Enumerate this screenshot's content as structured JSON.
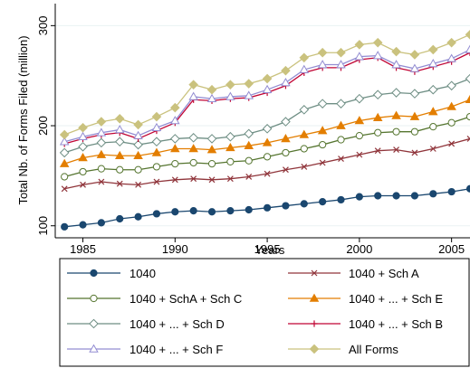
{
  "chart_data": {
    "type": "line",
    "title": "",
    "xlabel": "Years",
    "ylabel": "Total Nb. of Forms Filed (million)",
    "xlim": [
      1983.5,
      2006
    ],
    "ylim": [
      88,
      322
    ],
    "xticks": [
      1985,
      1990,
      1995,
      2000,
      2005
    ],
    "yticks": [
      100,
      200,
      300
    ],
    "grid": "horizontal",
    "legend_position": "bottom",
    "x": [
      1984,
      1985,
      1986,
      1987,
      1988,
      1989,
      1990,
      1991,
      1992,
      1993,
      1994,
      1995,
      1996,
      1997,
      1998,
      1999,
      2000,
      2001,
      2002,
      2003,
      2004,
      2005,
      2006
    ],
    "series": [
      {
        "name": "1040",
        "color": "#1a476f",
        "marker": "circle",
        "values": [
          99,
          101,
          103,
          107,
          109,
          112,
          114,
          115,
          114,
          115,
          116,
          118,
          120,
          122,
          124,
          126,
          129,
          130,
          130,
          130,
          132,
          134,
          137
        ]
      },
      {
        "name": "1040 + Sch A",
        "color": "#90353b",
        "marker": "x",
        "values": [
          137,
          141,
          144,
          142,
          141,
          144,
          146,
          147,
          146,
          147,
          149,
          152,
          156,
          159,
          163,
          167,
          171,
          175,
          176,
          173,
          177,
          182,
          187
        ]
      },
      {
        "name": "1040 + SchA + Sch C",
        "color": "#55752f",
        "marker": "circle-hollow",
        "values": [
          149,
          154,
          157,
          156,
          156,
          159,
          162,
          163,
          162,
          164,
          165,
          169,
          173,
          177,
          181,
          186,
          190,
          193,
          194,
          194,
          199,
          203,
          209
        ]
      },
      {
        "name": "1040 + ... + Sch E",
        "color": "#e37e00",
        "marker": "triangle",
        "values": [
          162,
          168,
          171,
          170,
          170,
          173,
          177,
          177,
          176,
          178,
          180,
          183,
          187,
          191,
          195,
          200,
          205,
          208,
          210,
          209,
          214,
          219,
          226
        ]
      },
      {
        "name": "1040 + ... + Sch D",
        "color": "#6e8e84",
        "marker": "diamond-hollow",
        "values": [
          173,
          179,
          183,
          184,
          181,
          184,
          187,
          188,
          187,
          189,
          192,
          197,
          204,
          216,
          222,
          222,
          227,
          231,
          233,
          232,
          236,
          240,
          247
        ]
      },
      {
        "name": "1040 + ... + Sch B",
        "color": "#c10534",
        "marker": "plus",
        "values": [
          182,
          187,
          191,
          193,
          187,
          195,
          203,
          226,
          225,
          227,
          228,
          233,
          240,
          253,
          258,
          258,
          266,
          268,
          258,
          254,
          259,
          264,
          273
        ]
      },
      {
        "name": "1040 + ... + Sch F",
        "color": "#938dd2",
        "marker": "triangle-hollow",
        "values": [
          184,
          189,
          193,
          196,
          190,
          198,
          205,
          229,
          227,
          229,
          230,
          236,
          243,
          256,
          261,
          261,
          269,
          270,
          261,
          257,
          262,
          267,
          276
        ]
      },
      {
        "name": "All Forms",
        "color": "#cac27e",
        "marker": "diamond",
        "values": [
          191,
          198,
          204,
          207,
          201,
          209,
          218,
          241,
          236,
          241,
          242,
          247,
          255,
          268,
          273,
          273,
          281,
          283,
          274,
          271,
          276,
          283,
          291
        ]
      }
    ]
  }
}
